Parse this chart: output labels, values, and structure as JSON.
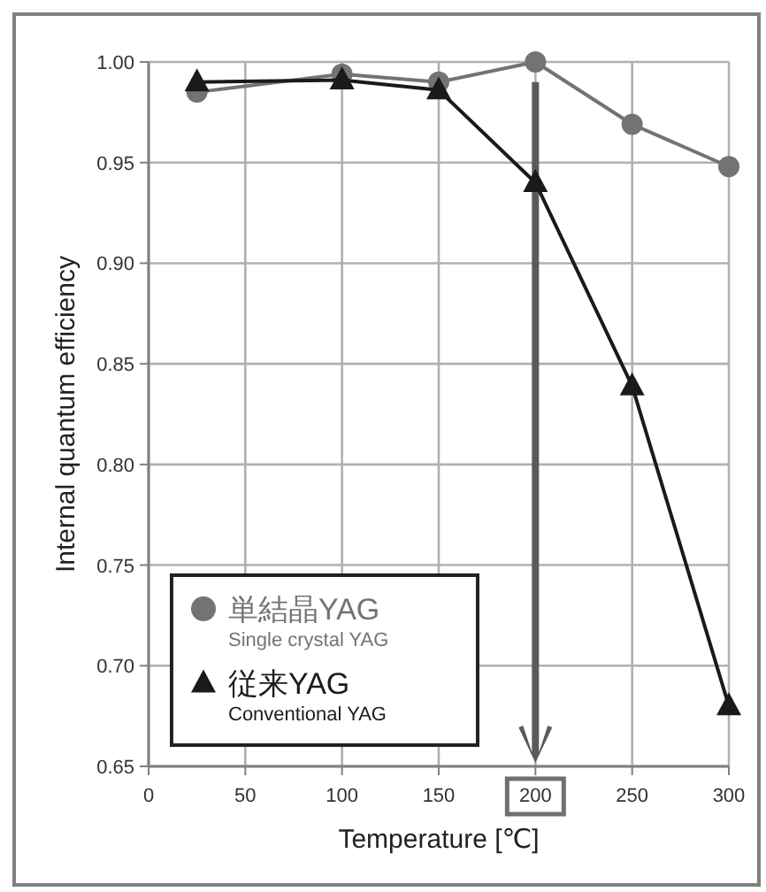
{
  "chart_data": {
    "type": "line",
    "xlabel": "Temperature [℃]",
    "ylabel": "Internal quantum efficiency",
    "x": [
      25,
      100,
      150,
      200,
      250,
      300
    ],
    "series": [
      {
        "name": "単結晶YAG\nSingle crystal YAG",
        "color": "#737373",
        "marker": "circle",
        "values": [
          0.985,
          0.994,
          0.99,
          1.0,
          0.969,
          0.948
        ]
      },
      {
        "name": "従来YAG\nConventional YAG",
        "color": "#1a1a1a",
        "marker": "triangle",
        "values": [
          0.99,
          0.991,
          0.986,
          0.94,
          0.839,
          0.68
        ]
      }
    ],
    "xlim": [
      0,
      300
    ],
    "xticks": [
      0,
      50,
      100,
      150,
      200,
      250,
      300
    ],
    "ylim": [
      0.65,
      1.0
    ],
    "yticks": [
      {
        "value": 0.65,
        "label": "0.65"
      },
      {
        "value": 0.7,
        "label": "0.70"
      },
      {
        "value": 0.75,
        "label": "0.75"
      },
      {
        "value": 0.8,
        "label": "0.80"
      },
      {
        "value": 0.85,
        "label": "0.85"
      },
      {
        "value": 0.9,
        "label": "0.90"
      },
      {
        "value": 0.95,
        "label": "0.95"
      },
      {
        "value": 1.0,
        "label": "1.00"
      }
    ],
    "grid": true,
    "legend": "bottom left",
    "line_style": "solid"
  }
}
